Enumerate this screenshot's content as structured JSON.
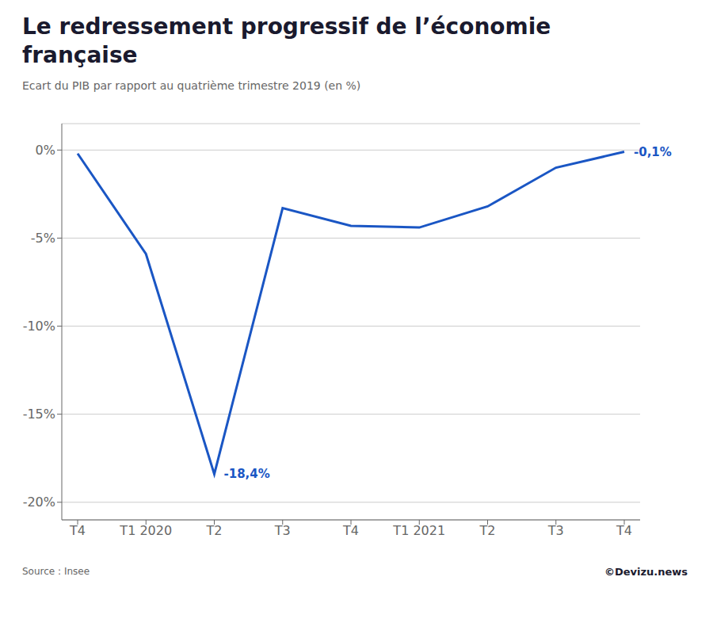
{
  "chart_data": {
    "type": "line",
    "title": "Le redressement progressif de l’économie française",
    "subtitle": "Ecart du PIB par rapport au quatrième trimestre 2019 (en %)",
    "categories": [
      "T4",
      "T1 2020",
      "T2",
      "T3",
      "T4",
      "T1 2021",
      "T2",
      "T3",
      "T4"
    ],
    "values": [
      -0.2,
      -5.9,
      -18.4,
      -3.3,
      -4.3,
      -4.4,
      -3.2,
      -1.0,
      -0.1
    ],
    "value_labels": [
      null,
      null,
      "-18,4%",
      null,
      null,
      null,
      null,
      null,
      "-0,1%"
    ],
    "color": "#1a56c4",
    "ylim": [
      -21,
      1.5
    ],
    "yticks": [
      {
        "value": 0,
        "label": "0%"
      },
      {
        "value": -5,
        "label": "-5%"
      },
      {
        "value": -10,
        "label": "-10%"
      },
      {
        "value": -15,
        "label": "-15%"
      },
      {
        "value": -20,
        "label": "-20%"
      }
    ],
    "grid": true,
    "source": "Source : Insee",
    "credit": "©Devizu.news"
  }
}
